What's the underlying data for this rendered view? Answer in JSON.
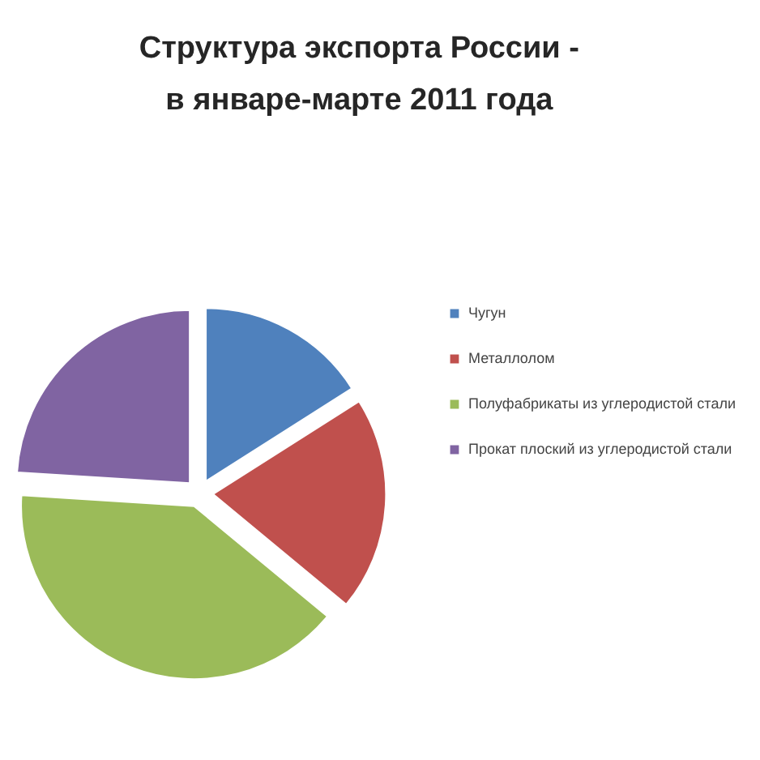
{
  "chart_data": {
    "type": "pie",
    "title": "Структура экспорта России  -  в январе-марте 2011 года",
    "categories": [
      "Чугун",
      "Металлолом",
      "Полуфабрикаты из углеродистой стали",
      "Прокат плоский из углеродистой стали"
    ],
    "values": [
      16,
      20,
      40,
      24
    ],
    "colors": [
      "#4f81bd",
      "#c0504d",
      "#9bbb59",
      "#8064a2"
    ],
    "legend": "right"
  }
}
